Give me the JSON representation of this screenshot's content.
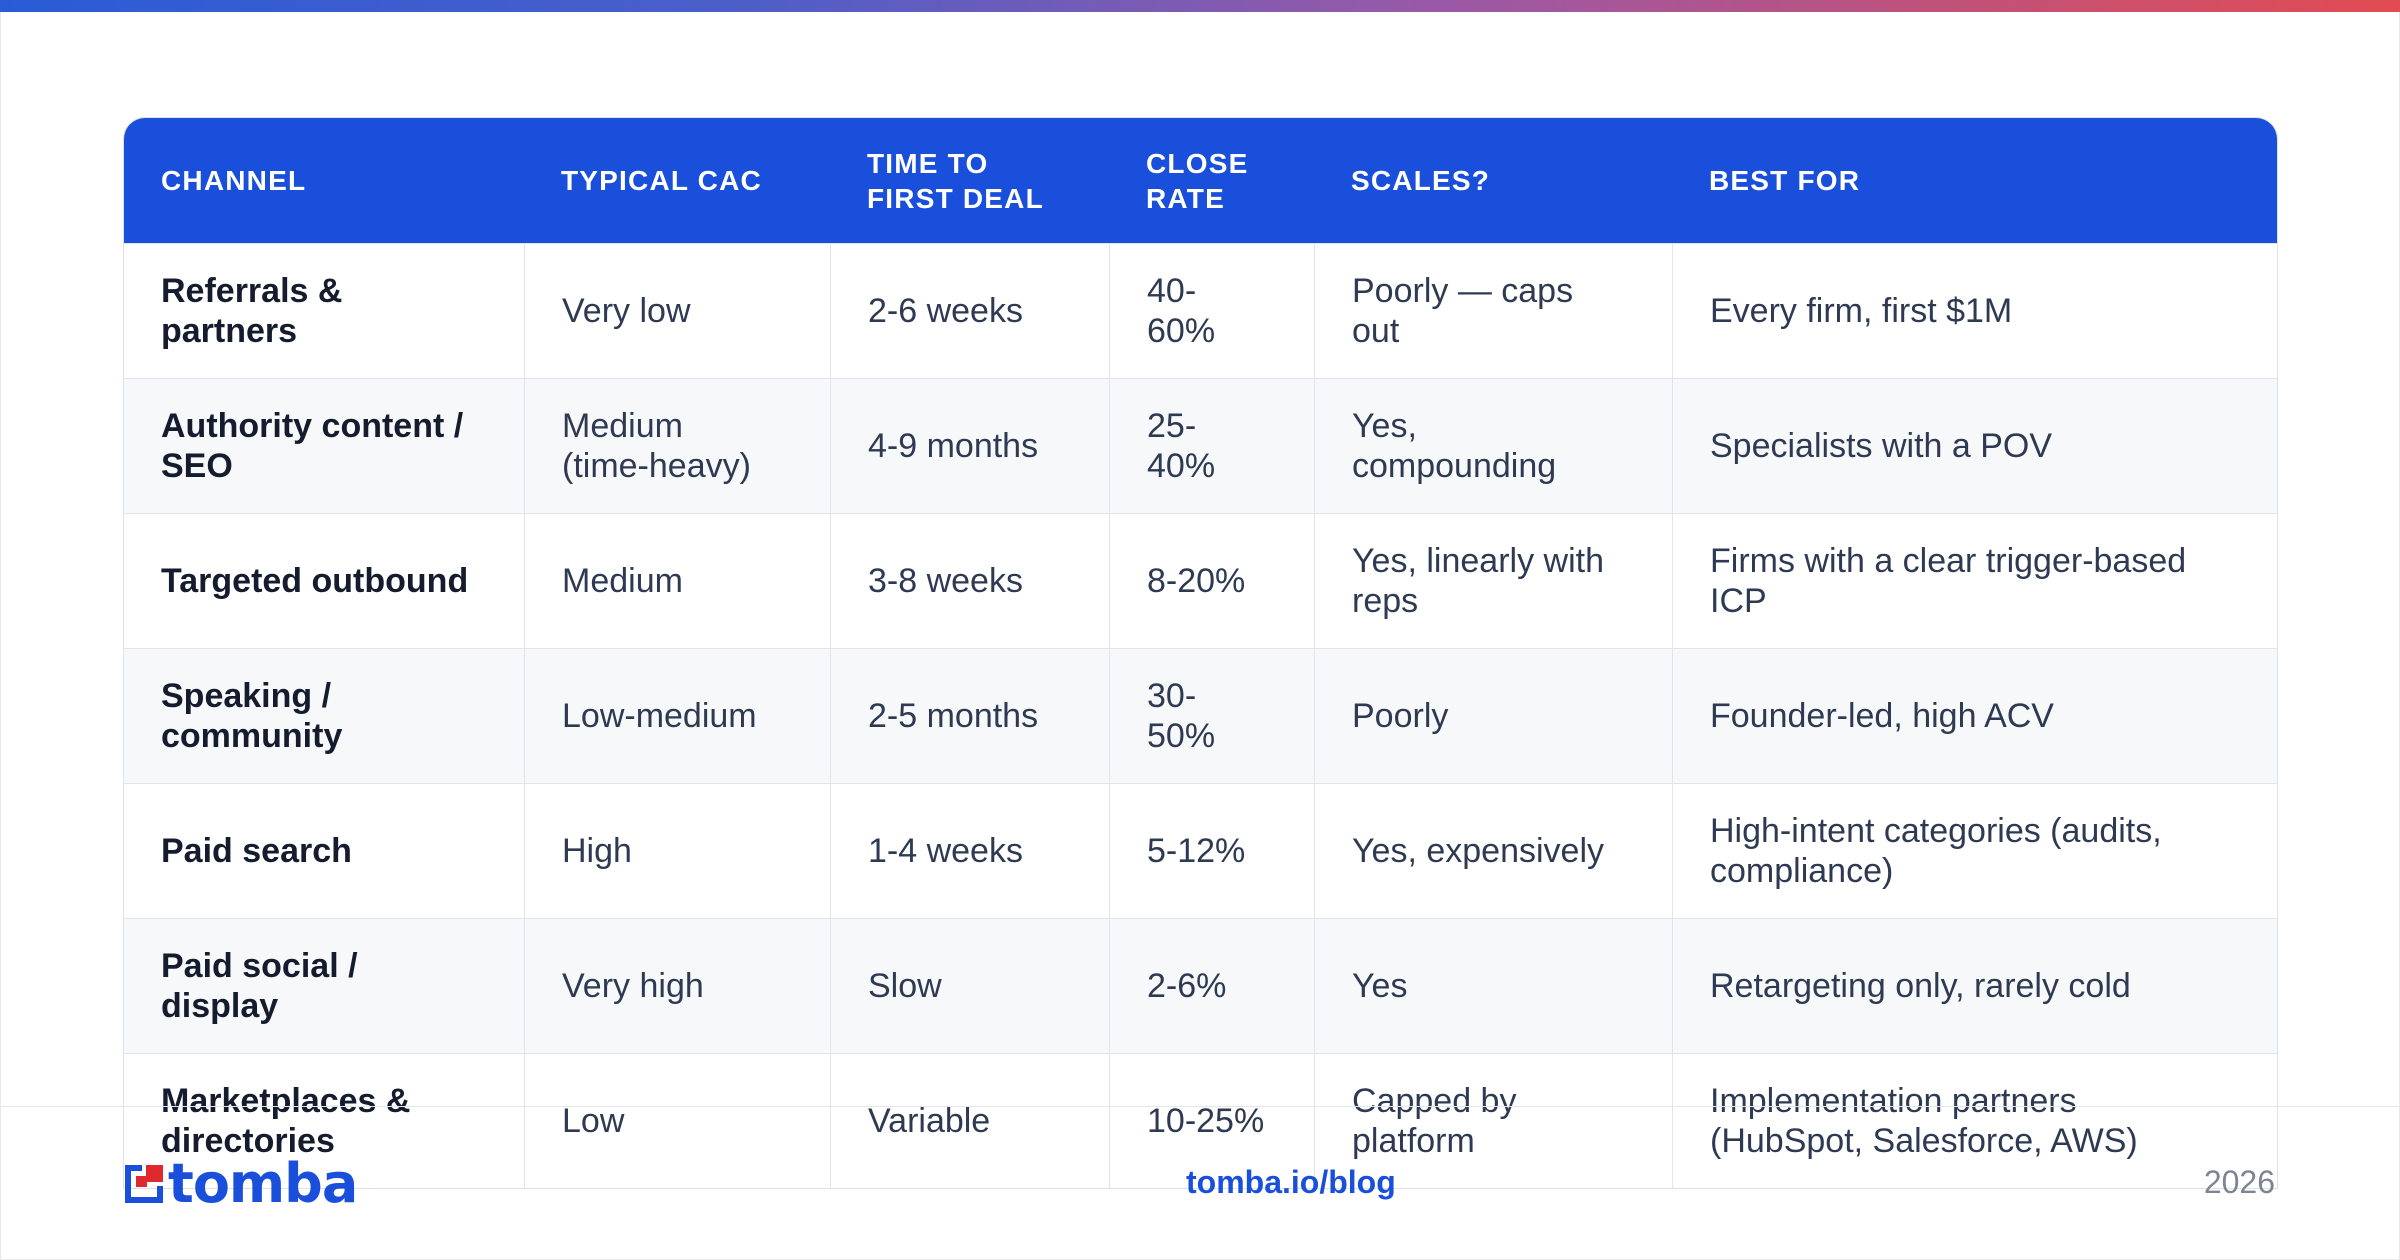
{
  "table": {
    "headers": [
      "CHANNEL",
      "TYPICAL CAC",
      "TIME TO\nFIRST DEAL",
      "CLOSE\nRATE",
      "SCALES?",
      "BEST FOR"
    ],
    "rows": [
      [
        "Referrals &\npartners",
        "Very low",
        "2-6 weeks",
        "40-\n60%",
        "Poorly — caps\nout",
        "Every firm, first $1M"
      ],
      [
        "Authority content /\nSEO",
        "Medium\n(time-heavy)",
        "4-9 months",
        "25-\n40%",
        "Yes,\ncompounding",
        "Specialists with a POV"
      ],
      [
        "Targeted outbound",
        "Medium",
        "3-8 weeks",
        "8-20%",
        "Yes, linearly with\nreps",
        "Firms with a clear trigger-based\nICP"
      ],
      [
        "Speaking /\ncommunity",
        "Low-medium",
        "2-5 months",
        "30-\n50%",
        "Poorly",
        "Founder-led, high ACV"
      ],
      [
        "Paid search",
        "High",
        "1-4 weeks",
        "5-12%",
        "Yes, expensively",
        "High-intent categories (audits,\ncompliance)"
      ],
      [
        "Paid social /\ndisplay",
        "Very high",
        "Slow",
        "2-6%",
        "Yes",
        "Retargeting only, rarely cold"
      ],
      [
        "Marketplaces &\ndirectories",
        "Low",
        "Variable",
        "10-25%",
        "Capped by\nplatform",
        "Implementation partners\n(HubSpot, Salesforce, AWS)"
      ]
    ]
  },
  "footer": {
    "logo_text": "tomba",
    "logo_icon": "tomba-logo-icon",
    "link": "tomba.io/blog",
    "year": "2026"
  },
  "colors": {
    "accent": "#1a4fdb",
    "logo_red": "#e0282f",
    "gradient": [
      "#2a5bd7",
      "#9a59a6",
      "#e24b52"
    ]
  }
}
